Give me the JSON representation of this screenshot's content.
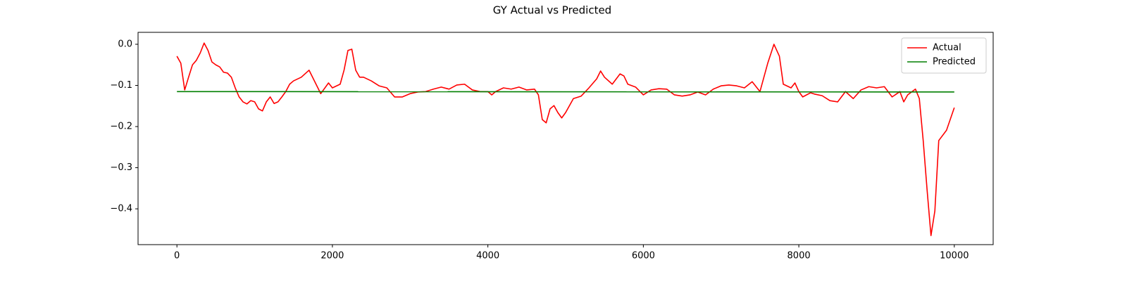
{
  "chart_data": {
    "type": "line",
    "title": "GY Actual vs Predicted",
    "xlim": [
      -500,
      10500
    ],
    "xticks": [
      0,
      2000,
      4000,
      6000,
      8000,
      10000
    ],
    "ylim": [
      -0.487,
      0.029
    ],
    "yticks": [
      {
        "value": 0,
        "label": "0.0"
      },
      {
        "value": -0.1,
        "label": "−0.1"
      },
      {
        "value": -0.2,
        "label": "−0.2"
      },
      {
        "value": -0.3,
        "label": "−0.3"
      },
      {
        "value": -0.4,
        "label": "−0.4"
      }
    ],
    "legend": "upper right",
    "grid": false,
    "series": [
      {
        "name": "Actual",
        "color": "#ff0000",
        "x": [
          0,
          50,
          100,
          150,
          200,
          250,
          300,
          350,
          400,
          450,
          500,
          550,
          600,
          650,
          700,
          750,
          800,
          850,
          900,
          950,
          1000,
          1050,
          1100,
          1150,
          1200,
          1250,
          1300,
          1350,
          1400,
          1450,
          1500,
          1600,
          1700,
          1850,
          1950,
          2000,
          2100,
          2150,
          2200,
          2250,
          2300,
          2350,
          2400,
          2500,
          2600,
          2700,
          2800,
          2900,
          3000,
          3100,
          3200,
          3300,
          3400,
          3500,
          3600,
          3700,
          3800,
          3900,
          4000,
          4050,
          4100,
          4200,
          4300,
          4400,
          4500,
          4600,
          4650,
          4700,
          4750,
          4800,
          4850,
          4900,
          4950,
          5000,
          5100,
          5200,
          5300,
          5400,
          5450,
          5500,
          5600,
          5700,
          5750,
          5800,
          5900,
          6000,
          6100,
          6200,
          6300,
          6400,
          6500,
          6600,
          6700,
          6800,
          6900,
          7000,
          7100,
          7200,
          7300,
          7400,
          7500,
          7600,
          7680,
          7750,
          7800,
          7900,
          7950,
          8000,
          8050,
          8150,
          8200,
          8300,
          8400,
          8500,
          8600,
          8700,
          8800,
          8900,
          9000,
          9100,
          9200,
          9300,
          9350,
          9400,
          9500,
          9550,
          9600,
          9650,
          9700,
          9750,
          9800,
          9900,
          10000
        ],
        "values": [
          -0.029,
          -0.046,
          -0.111,
          -0.08,
          -0.05,
          -0.039,
          -0.021,
          0.003,
          -0.015,
          -0.043,
          -0.05,
          -0.055,
          -0.068,
          -0.07,
          -0.08,
          -0.106,
          -0.128,
          -0.14,
          -0.145,
          -0.137,
          -0.14,
          -0.157,
          -0.162,
          -0.14,
          -0.128,
          -0.144,
          -0.14,
          -0.128,
          -0.115,
          -0.097,
          -0.089,
          -0.08,
          -0.063,
          -0.12,
          -0.094,
          -0.106,
          -0.097,
          -0.063,
          -0.015,
          -0.012,
          -0.063,
          -0.08,
          -0.08,
          -0.089,
          -0.101,
          -0.106,
          -0.128,
          -0.128,
          -0.12,
          -0.116,
          -0.115,
          -0.109,
          -0.104,
          -0.109,
          -0.099,
          -0.097,
          -0.111,
          -0.115,
          -0.115,
          -0.123,
          -0.115,
          -0.106,
          -0.109,
          -0.104,
          -0.111,
          -0.109,
          -0.123,
          -0.183,
          -0.191,
          -0.157,
          -0.149,
          -0.166,
          -0.179,
          -0.166,
          -0.132,
          -0.126,
          -0.106,
          -0.084,
          -0.065,
          -0.08,
          -0.097,
          -0.072,
          -0.077,
          -0.097,
          -0.104,
          -0.123,
          -0.111,
          -0.108,
          -0.109,
          -0.123,
          -0.126,
          -0.123,
          -0.116,
          -0.123,
          -0.109,
          -0.101,
          -0.099,
          -0.101,
          -0.106,
          -0.091,
          -0.115,
          -0.046,
          0.0,
          -0.029,
          -0.097,
          -0.106,
          -0.094,
          -0.115,
          -0.128,
          -0.118,
          -0.121,
          -0.125,
          -0.137,
          -0.14,
          -0.115,
          -0.132,
          -0.111,
          -0.103,
          -0.106,
          -0.103,
          -0.128,
          -0.115,
          -0.14,
          -0.123,
          -0.109,
          -0.132,
          -0.234,
          -0.354,
          -0.465,
          -0.405,
          -0.234,
          -0.209,
          -0.154
        ]
      },
      {
        "name": "Predicted",
        "color": "#007f00",
        "x": [
          0,
          10000
        ],
        "values": [
          -0.115,
          -0.116
        ]
      }
    ]
  }
}
